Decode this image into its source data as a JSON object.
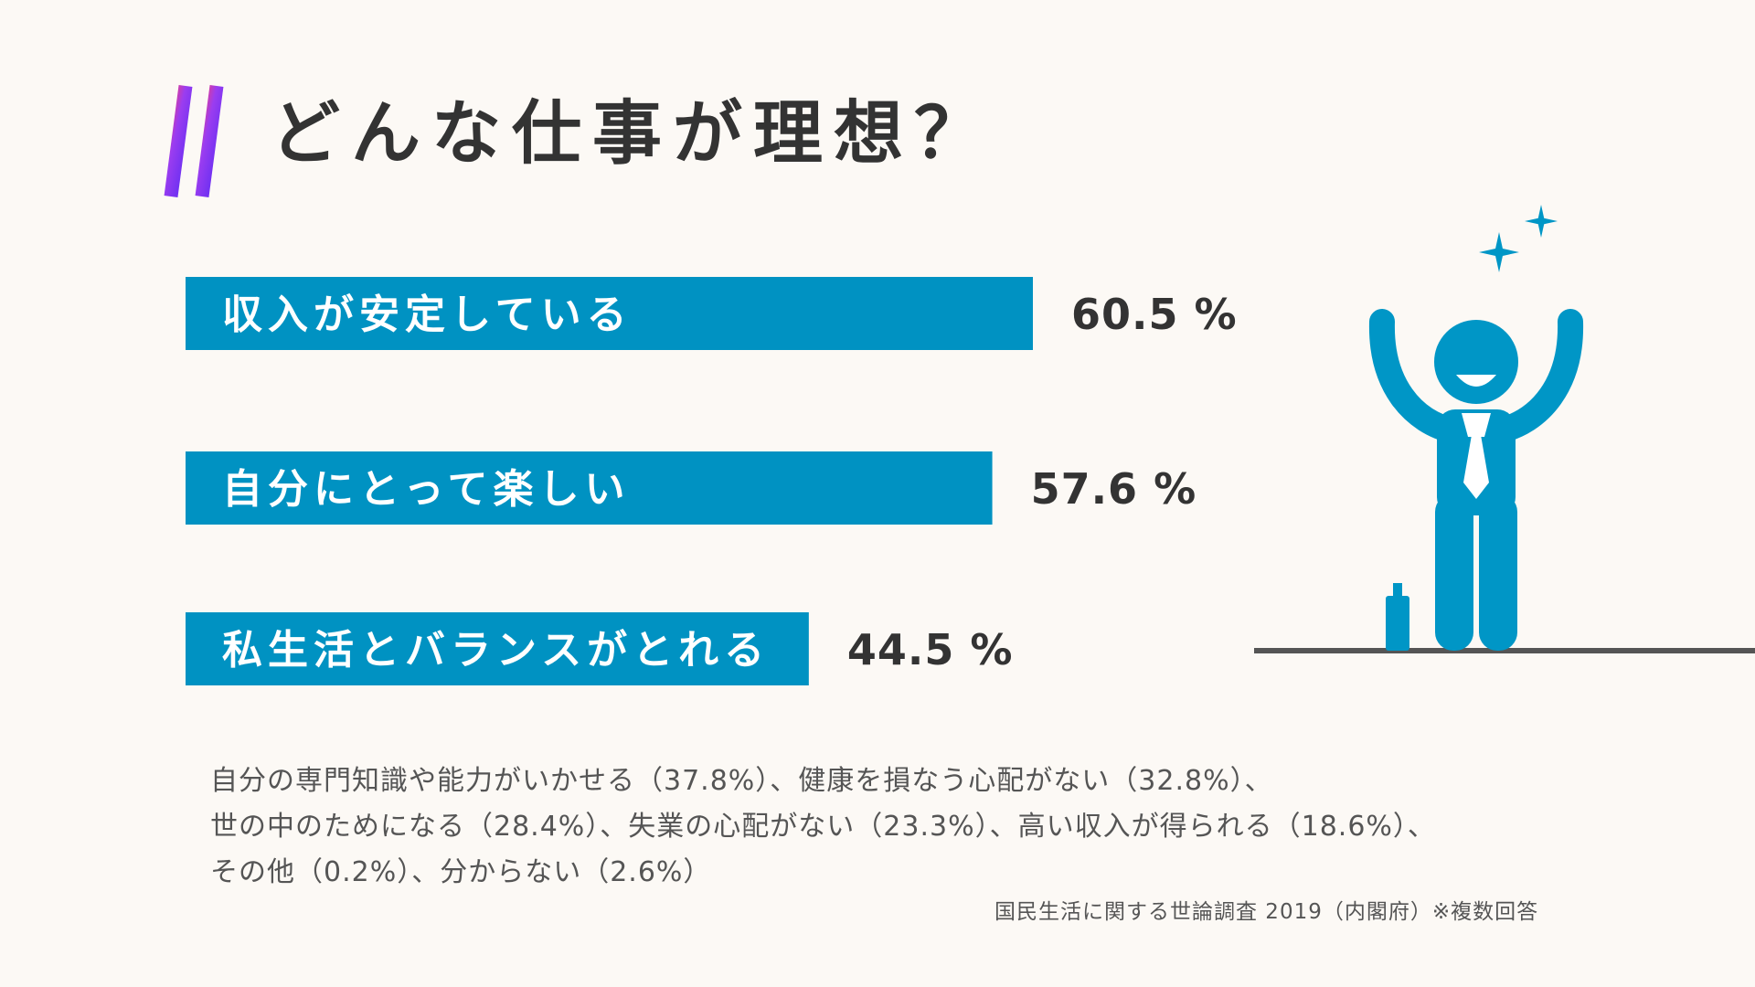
{
  "title": "どんな仕事が理想？",
  "colors": {
    "bar": "#0092c2",
    "figure": "#0096c6",
    "text": "#333333",
    "floor": "#555555",
    "background": "#fcf9f5"
  },
  "chart_data": {
    "type": "bar",
    "orientation": "horizontal",
    "categories": [
      "収入が安定している",
      "自分にとって楽しい",
      "私生活とバランスがとれる"
    ],
    "values": [
      60.5,
      57.6,
      44.5
    ],
    "value_labels": [
      "60.5 %",
      "57.6 %",
      "44.5 %"
    ],
    "unit": "%",
    "xlim": [
      0,
      60.5
    ],
    "grid": false,
    "legend": "none"
  },
  "others_lines": [
    "自分の専門知識や能力がいかせる（37.8%）、健康を損なう心配がない（32.8%）、",
    "世の中のためになる（28.4%）、失業の心配がない（23.3%）、高い収入が得られる（18.6%）、",
    "その他（0.2%）、分からない（2.6%）"
  ],
  "source": "国民生活に関する世論調査 2019（内閣府）※複数回答",
  "icons": [
    "hashtag-icon",
    "person-celebrating-icon",
    "sparkle-icon"
  ]
}
